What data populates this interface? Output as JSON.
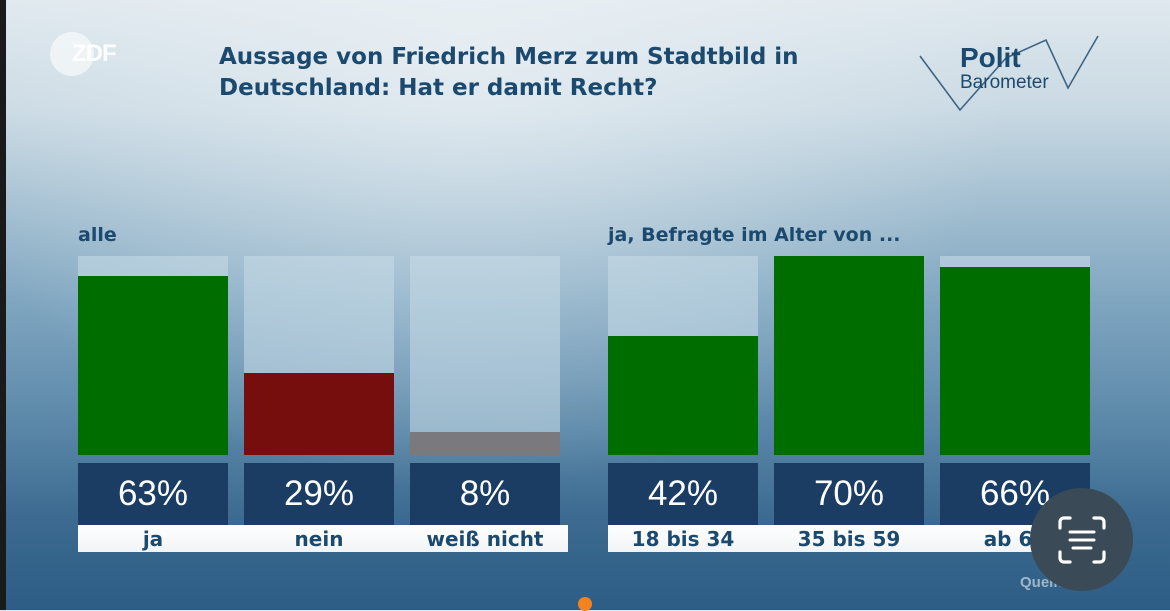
{
  "header": {
    "broadcaster": "ZDF",
    "title": "Aussage von Friedrich Merz zum Stadtbild in Deutschland: Hat er damit Recht?",
    "brand_line1": "Polit",
    "brand_line2": "Barometer"
  },
  "footer": {
    "source": "Quelle: ZDF"
  },
  "overlay": {
    "lens_button": "scan-text-button"
  },
  "colors": {
    "ja": "#006d00",
    "nein": "#760e0e",
    "weiss_nicht": "#7a7a7e",
    "value_box": "#1b3d63",
    "title": "#1c4a6e",
    "indicator_dot": "#f58220"
  },
  "chart_data": [
    {
      "type": "bar",
      "title": "alle",
      "categories": [
        "ja",
        "nein",
        "weiß nicht"
      ],
      "values": [
        63,
        29,
        8
      ],
      "value_labels": [
        "63%",
        "29%",
        "8%"
      ],
      "colors": [
        "#006d00",
        "#760e0e",
        "#7a7a7e"
      ],
      "ylim": [
        0,
        70
      ],
      "unit": "%",
      "grid": false
    },
    {
      "type": "bar",
      "title": "ja, Befragte im Alter von ...",
      "categories": [
        "18 bis 34",
        "35 bis 59",
        "ab 60"
      ],
      "values": [
        42,
        70,
        66
      ],
      "value_labels": [
        "42%",
        "70%",
        "66%"
      ],
      "colors": [
        "#006d00",
        "#006d00",
        "#006d00"
      ],
      "ylim": [
        0,
        70
      ],
      "unit": "%",
      "grid": false
    }
  ]
}
